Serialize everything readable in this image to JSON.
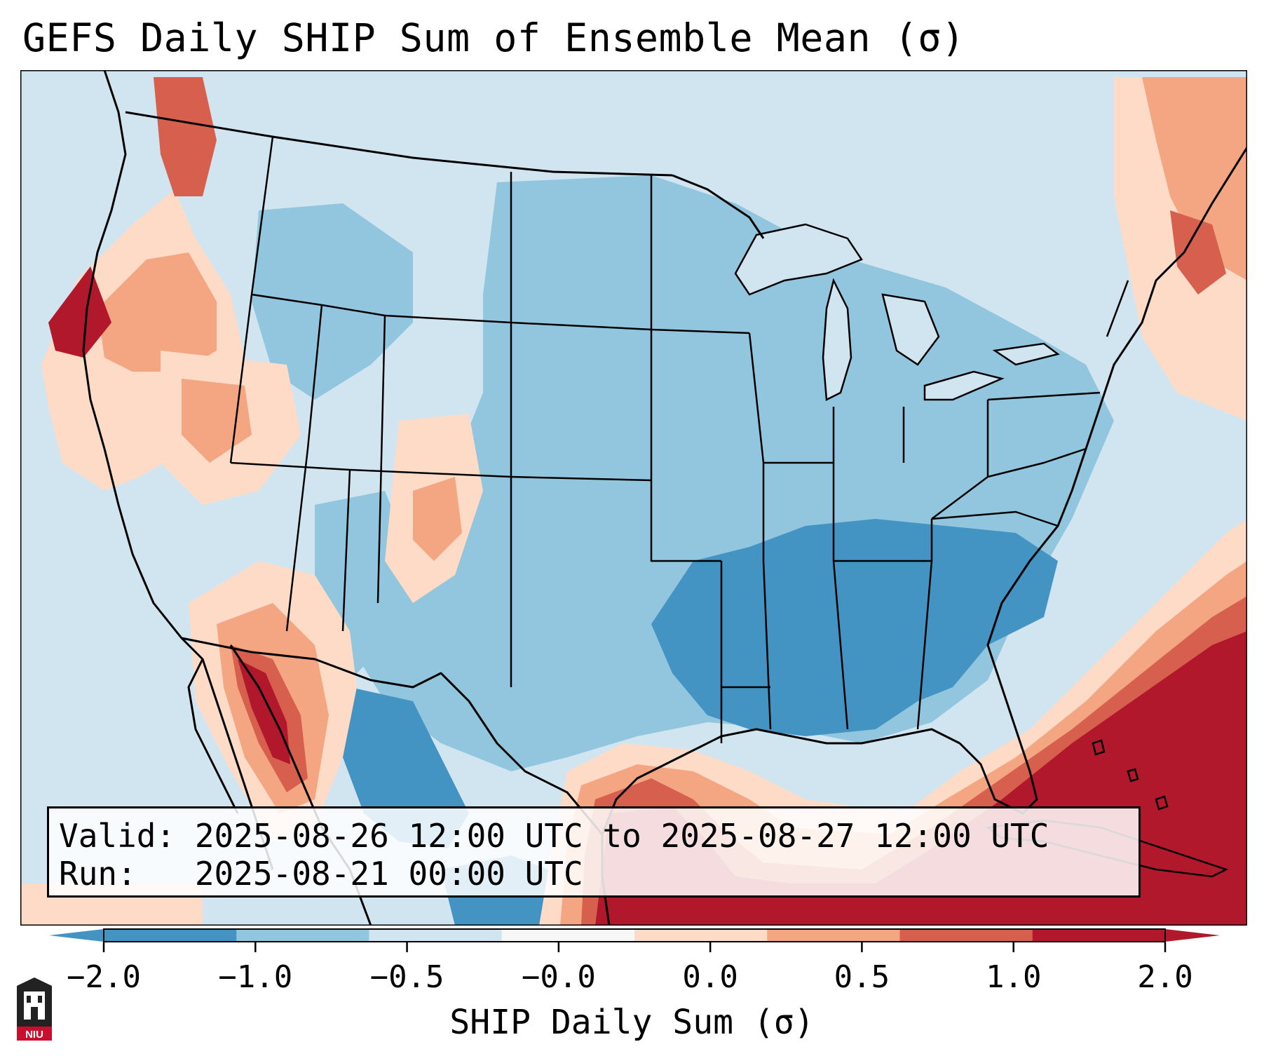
{
  "title": "GEFS Daily SHIP Sum of Ensemble Mean (σ)",
  "valid_text": "Valid: 2025-08-26 12:00 UTC to 2025-08-27 12:00 UTC",
  "run_text": "Run:   2025-08-21 00:00 UTC",
  "colorbar": {
    "label": "SHIP Daily Sum (σ)",
    "ticks": [
      "−2.0",
      "−1.0",
      "−0.5",
      "−0.0",
      "0.0",
      "0.5",
      "1.0",
      "2.0"
    ],
    "colors": [
      "#4393c3",
      "#92c5de",
      "#d1e5f0",
      "#f7f7f7",
      "#fddbc7",
      "#f4a582",
      "#d6604d",
      "#b2182b"
    ],
    "under_color": "#2166ac",
    "over_color": "#67001f"
  },
  "logo": {
    "text": "NIU"
  },
  "map_regions": {
    "background": "near-neutral light blue",
    "positive_areas": [
      "Pacific Northwest coast",
      "Northern California",
      "Baja California / Sonora",
      "Gulf of Mexico",
      "Western Atlantic",
      "Maine"
    ],
    "negative_areas": [
      "Tennessee / Mississippi / Alabama / Georgia",
      "Northern Mexico",
      "Carolinas coast"
    ]
  }
}
